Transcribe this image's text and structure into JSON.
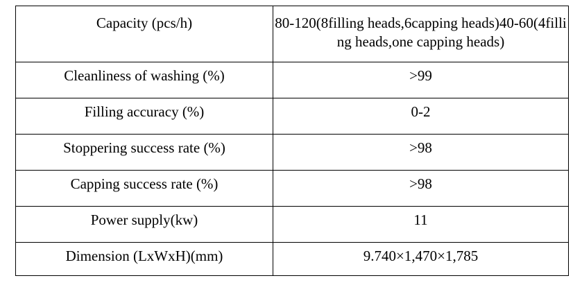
{
  "table": {
    "rows": [
      {
        "label": "Capacity (pcs/h)",
        "value": "80-120(8filling heads,6capping heads)40-60(4filling heads,one capping heads)"
      },
      {
        "label": "Cleanliness of washing (%)",
        "value": ">99"
      },
      {
        "label": "Filling accuracy (%)",
        "value": "0-2"
      },
      {
        "label": "Stoppering success rate (%)",
        "value": ">98"
      },
      {
        "label": "Capping success rate (%)",
        "value": ">98"
      },
      {
        "label": "Power supply(kw)",
        "value": "11"
      },
      {
        "label": "Dimension (LxWxH)(mm)",
        "value": "9.740×1,470×1,785"
      }
    ]
  }
}
